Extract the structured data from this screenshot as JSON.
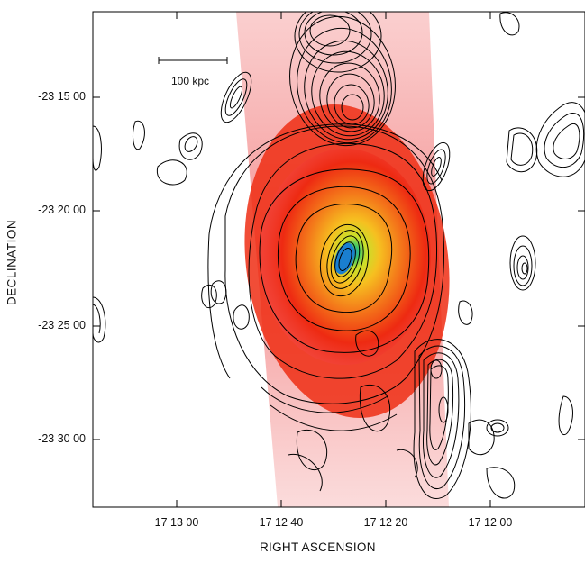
{
  "figure": {
    "xlabel": "RIGHT ASCENSION",
    "ylabel": "DECLINATION",
    "x_ticks": [
      "17 13 00",
      "17 12 40",
      "17 12 20",
      "17 12 00"
    ],
    "y_ticks": [
      "-23 15 00",
      "-23 20 00",
      "-23 25 00",
      "-23 30 00"
    ],
    "scale_bar_label": "100 kpc"
  }
}
